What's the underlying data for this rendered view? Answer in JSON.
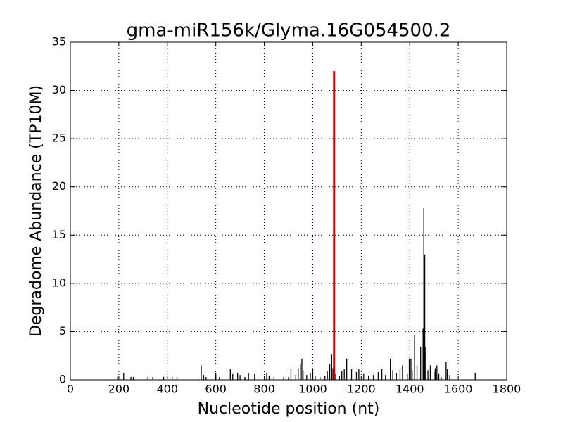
{
  "chart_data": {
    "type": "stem",
    "title": "gma-miR156k/Glyma.16G054500.2",
    "x_label": "Nucleotide position (nt)",
    "y_label": "Degradome Abundance (TP10M)",
    "xlim": [
      0,
      1800
    ],
    "xticks": [
      0,
      200,
      400,
      600,
      800,
      1000,
      1200,
      1400,
      1600,
      1800
    ],
    "ylim": [
      0,
      35
    ],
    "yticks": [
      0,
      5,
      10,
      15,
      20,
      25,
      30,
      35
    ],
    "grid": true,
    "series": [
      {
        "color": "#000000",
        "x": [
          195,
          220,
          250,
          260,
          320,
          340,
          385,
          420,
          440,
          540,
          550,
          560,
          600,
          615,
          660,
          670,
          690,
          700,
          720,
          735,
          760,
          810,
          820,
          840,
          880,
          900,
          910,
          930,
          940,
          950,
          955,
          960,
          975,
          990,
          1000,
          1010,
          1030,
          1050,
          1060,
          1070,
          1078,
          1083,
          1095,
          1110,
          1120,
          1130,
          1140,
          1160,
          1180,
          1190,
          1210,
          1230,
          1250,
          1270,
          1285,
          1300,
          1320,
          1330,
          1345,
          1360,
          1370,
          1390,
          1398,
          1405,
          1410,
          1420,
          1430,
          1445,
          1455,
          1458,
          1462,
          1466,
          1475,
          1485,
          1500,
          1505,
          1512,
          1520,
          1530,
          1550,
          1555,
          1565,
          1670
        ],
        "values": [
          0.3,
          0.7,
          0.3,
          0.3,
          0.3,
          0.3,
          0.3,
          0.3,
          0.3,
          1.5,
          0.5,
          0.3,
          0.7,
          0.3,
          1.1,
          0.6,
          0.7,
          0.5,
          0.3,
          0.7,
          0.6,
          0.7,
          0.4,
          0.3,
          0.3,
          0.3,
          1.1,
          0.5,
          1.2,
          1.6,
          2.2,
          1.0,
          0.5,
          0.7,
          1.2,
          0.4,
          0.3,
          0.4,
          0.9,
          1.6,
          2.6,
          1.2,
          0.6,
          0.4,
          0.9,
          1.1,
          2.2,
          1.1,
          0.8,
          1.1,
          0.6,
          0.4,
          0.5,
          0.8,
          1.1,
          0.5,
          2.2,
          1.0,
          0.7,
          1.1,
          1.5,
          0.6,
          2.2,
          2.2,
          1.0,
          4.6,
          1.5,
          3.4,
          5.3,
          17.8,
          13.0,
          3.4,
          1.0,
          1.5,
          0.8,
          1.2,
          1.5,
          0.6,
          0.3,
          1.9,
          1.1,
          0.5,
          0.7
        ]
      },
      {
        "color": "#e00000",
        "x": [
          1088
        ],
        "values": [
          32
        ]
      }
    ]
  }
}
